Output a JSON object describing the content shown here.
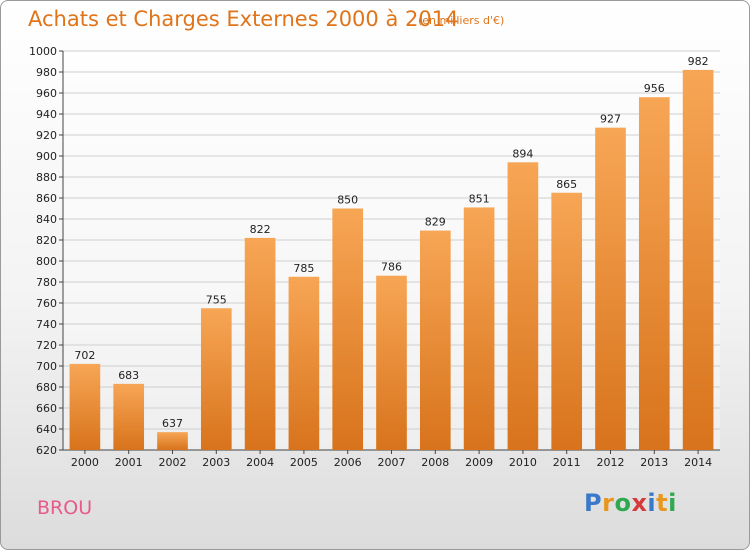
{
  "chart_data": {
    "type": "bar",
    "title": "Achats et Charges Externes 2000 à 2014",
    "subtitle": "(en milliers d'€)",
    "categories": [
      "2000",
      "2001",
      "2002",
      "2003",
      "2004",
      "2005",
      "2006",
      "2007",
      "2008",
      "2009",
      "2010",
      "2011",
      "2012",
      "2013",
      "2014"
    ],
    "values": [
      702,
      683,
      637,
      755,
      822,
      785,
      850,
      786,
      829,
      851,
      894,
      865,
      927,
      956,
      982
    ],
    "ylim": [
      620,
      1000
    ],
    "ytick_step": 20,
    "grid": true,
    "bar_color_top": "#f7a655",
    "bar_color_bottom": "#d8731c"
  },
  "commune": "BROU",
  "logo": {
    "letters": [
      "P",
      "r",
      "o",
      "x",
      "i",
      "t",
      "i"
    ],
    "colors": [
      "#3a78c9",
      "#e8961c",
      "#2fa84f",
      "#d63b3b",
      "#3a78c9",
      "#e8961c",
      "#2fa84f"
    ]
  }
}
